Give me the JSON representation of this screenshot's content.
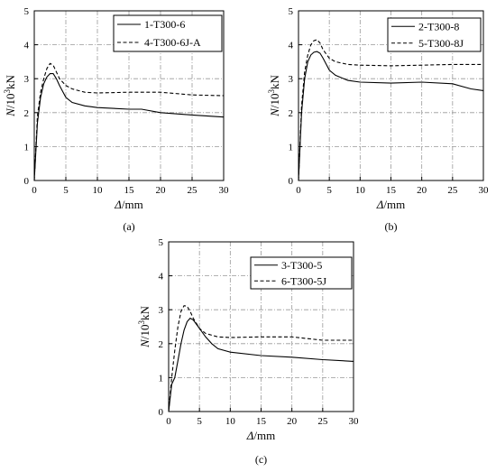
{
  "chart_data": [
    {
      "type": "line",
      "panel_label": "(a)",
      "xlabel_italic": "Δ",
      "xlabel_rest": "/mm",
      "ylabel_n": "N",
      "ylabel_unit": "/10",
      "ylabel_sup": "3",
      "ylabel_kn": "kN",
      "xlim": [
        0,
        30
      ],
      "ylim": [
        0,
        5
      ],
      "xticks": [
        "0",
        "5",
        "10",
        "15",
        "20",
        "25",
        "30"
      ],
      "yticks": [
        "0",
        "1",
        "2",
        "3",
        "4",
        "5"
      ],
      "grid": true,
      "legend_position": "top-right",
      "series": [
        {
          "name": "1-T300-6",
          "style": "solid",
          "x": [
            0,
            0.5,
            1,
            1.5,
            2,
            2.5,
            3,
            3.5,
            4,
            5,
            6,
            8,
            10,
            15,
            17,
            20,
            25,
            30
          ],
          "y": [
            0,
            1.7,
            2.45,
            2.85,
            3.05,
            3.15,
            3.15,
            3.0,
            2.8,
            2.45,
            2.3,
            2.2,
            2.15,
            2.1,
            2.1,
            2.0,
            1.93,
            1.87
          ]
        },
        {
          "name": "4-T300-6J-A",
          "style": "dashed",
          "x": [
            0,
            0.5,
            1,
            1.5,
            2,
            2.5,
            3,
            3.5,
            4,
            5,
            6,
            8,
            10,
            15,
            20,
            25,
            30
          ],
          "y": [
            0,
            1.9,
            2.6,
            3.0,
            3.3,
            3.45,
            3.4,
            3.2,
            3.0,
            2.8,
            2.7,
            2.6,
            2.58,
            2.6,
            2.6,
            2.52,
            2.5
          ]
        }
      ]
    },
    {
      "type": "line",
      "panel_label": "(b)",
      "xlabel_italic": "Δ",
      "xlabel_rest": "/mm",
      "ylabel_n": "N",
      "ylabel_unit": "/10",
      "ylabel_sup": "3",
      "ylabel_kn": "kN",
      "xlim": [
        0,
        30
      ],
      "ylim": [
        0,
        5
      ],
      "xticks": [
        "0",
        "5",
        "10",
        "15",
        "20",
        "25",
        "30"
      ],
      "yticks": [
        "0",
        "1",
        "2",
        "3",
        "4",
        "5"
      ],
      "grid": true,
      "legend_position": "top-right",
      "series": [
        {
          "name": "2-T300-8",
          "style": "solid",
          "x": [
            0,
            0.5,
            1,
            1.5,
            2,
            2.5,
            3,
            3.5,
            4,
            5,
            6,
            8,
            10,
            15,
            20,
            25,
            28,
            30
          ],
          "y": [
            0,
            2.0,
            3.0,
            3.5,
            3.7,
            3.78,
            3.8,
            3.75,
            3.6,
            3.25,
            3.1,
            2.95,
            2.9,
            2.87,
            2.9,
            2.85,
            2.7,
            2.65
          ]
        },
        {
          "name": "5-T300-8J",
          "style": "dashed",
          "x": [
            0,
            0.5,
            1,
            1.5,
            2,
            2.5,
            3,
            3.5,
            4,
            5,
            6,
            8,
            10,
            15,
            20,
            25,
            30
          ],
          "y": [
            0,
            2.2,
            3.2,
            3.7,
            4.0,
            4.12,
            4.15,
            4.05,
            3.85,
            3.6,
            3.5,
            3.42,
            3.4,
            3.38,
            3.4,
            3.42,
            3.42
          ]
        }
      ]
    },
    {
      "type": "line",
      "panel_label": "(c)",
      "xlabel_italic": "Δ",
      "xlabel_rest": "/mm",
      "ylabel_n": "N",
      "ylabel_unit": "/10",
      "ylabel_sup": "3",
      "ylabel_kn": "kN",
      "xlim": [
        0,
        30
      ],
      "ylim": [
        0,
        5
      ],
      "xticks": [
        "0",
        "5",
        "10",
        "15",
        "20",
        "25",
        "30"
      ],
      "yticks": [
        "0",
        "1",
        "2",
        "3",
        "4",
        "5"
      ],
      "grid": true,
      "legend_position": "top-right",
      "series": [
        {
          "name": "3-T300-5",
          "style": "solid",
          "x": [
            0,
            0.5,
            1,
            1.5,
            2,
            2.5,
            3,
            3.5,
            4,
            5,
            6,
            7,
            8,
            10,
            15,
            20,
            25,
            30
          ],
          "y": [
            0,
            0.8,
            1.0,
            1.5,
            2.0,
            2.4,
            2.65,
            2.75,
            2.7,
            2.45,
            2.2,
            2.0,
            1.85,
            1.75,
            1.65,
            1.6,
            1.53,
            1.48
          ]
        },
        {
          "name": "6-T300-5J",
          "style": "dashed",
          "x": [
            0,
            0.5,
            1,
            1.5,
            2,
            2.5,
            3,
            3.5,
            4,
            5,
            6,
            8,
            10,
            15,
            20,
            25,
            30
          ],
          "y": [
            0,
            1.0,
            1.8,
            2.5,
            2.95,
            3.12,
            3.1,
            2.95,
            2.75,
            2.45,
            2.3,
            2.2,
            2.18,
            2.2,
            2.2,
            2.1,
            2.1
          ]
        }
      ]
    }
  ]
}
